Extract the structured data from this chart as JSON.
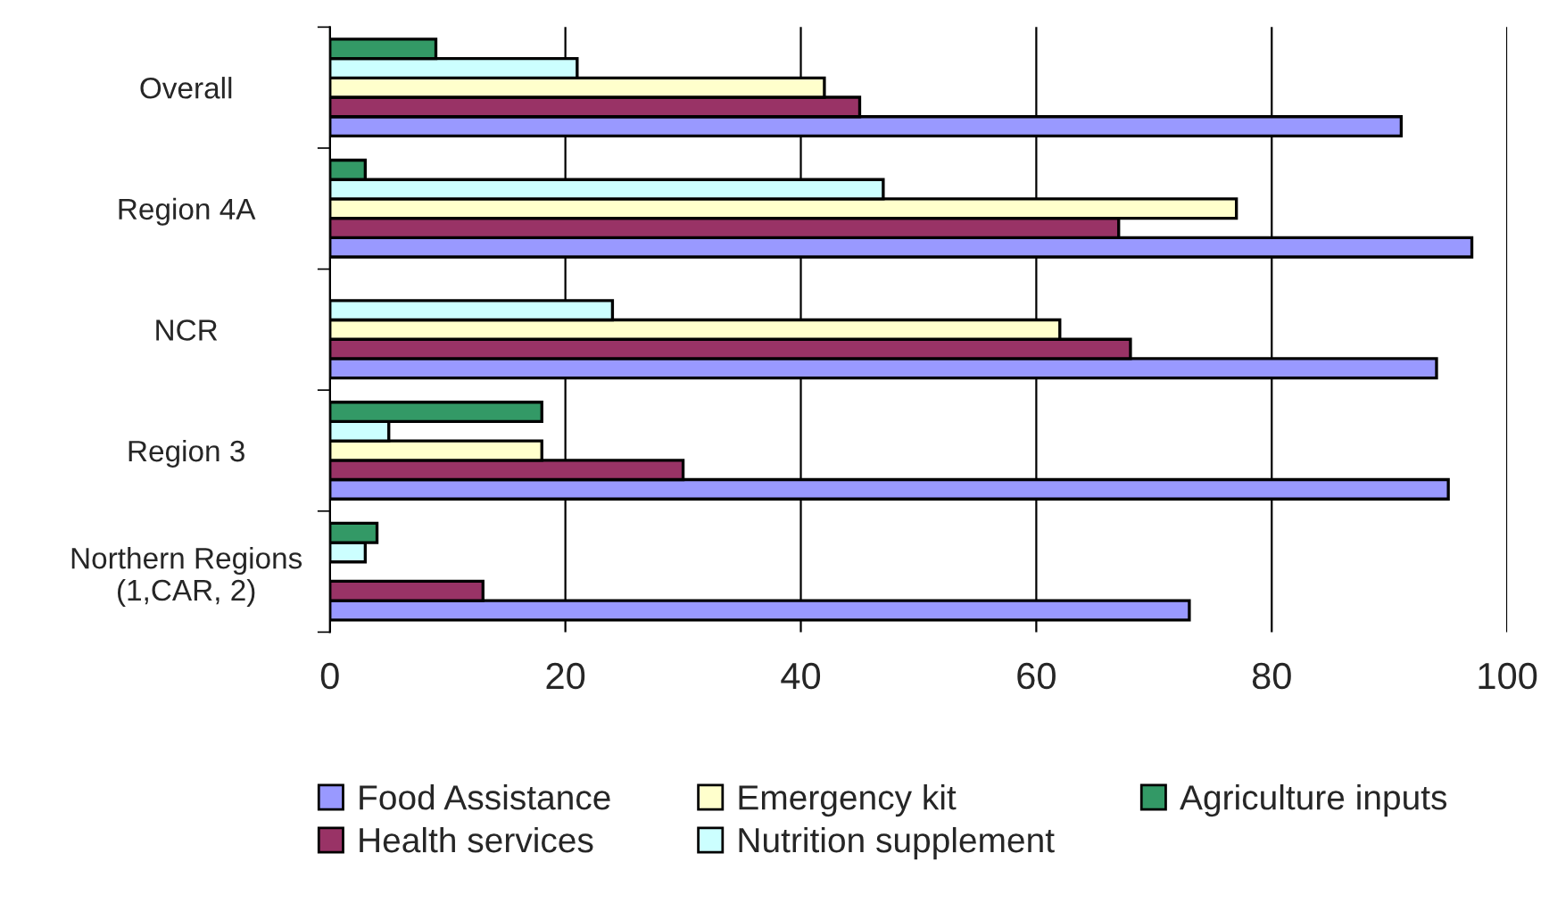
{
  "chart_data": {
    "type": "bar",
    "orientation": "horizontal",
    "categories": [
      "Overall",
      "Region 4A",
      "NCR",
      "Region 3",
      "Northern Regions\n(1,CAR, 2)"
    ],
    "series": [
      {
        "name": "Food Assistance",
        "color": "#9999ff",
        "values": [
          91,
          97,
          94,
          95,
          73
        ]
      },
      {
        "name": "Health services",
        "color": "#993366",
        "values": [
          45,
          67,
          68,
          30,
          13
        ]
      },
      {
        "name": "Emergency kit",
        "color": "#ffffcc",
        "values": [
          42,
          77,
          62,
          18,
          null
        ]
      },
      {
        "name": "Nutrition supplement",
        "color": "#ccffff",
        "values": [
          21,
          47,
          24,
          5,
          3
        ]
      },
      {
        "name": "Agriculture inputs",
        "color": "#339966",
        "values": [
          9,
          3,
          null,
          18,
          4
        ]
      }
    ],
    "xlim": [
      0,
      100
    ],
    "xticks": [
      0,
      20,
      40,
      60,
      80,
      100
    ],
    "grid": "x",
    "legend": "bottom"
  }
}
